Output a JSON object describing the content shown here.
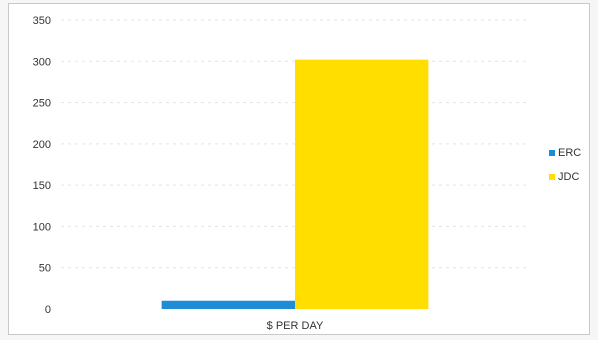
{
  "chart_data": {
    "type": "bar",
    "title": "",
    "xlabel": "",
    "ylabel": "",
    "categories": [
      "$ PER DAY"
    ],
    "series": [
      {
        "name": "ERC",
        "values": [
          10
        ],
        "color": "#1f8dd6"
      },
      {
        "name": "JDC",
        "values": [
          302
        ],
        "color": "#ffde00"
      }
    ],
    "ylim": [
      0,
      350
    ],
    "yticks": [
      0,
      50,
      100,
      150,
      200,
      250,
      300,
      350
    ],
    "grid": true,
    "legend": "right"
  }
}
